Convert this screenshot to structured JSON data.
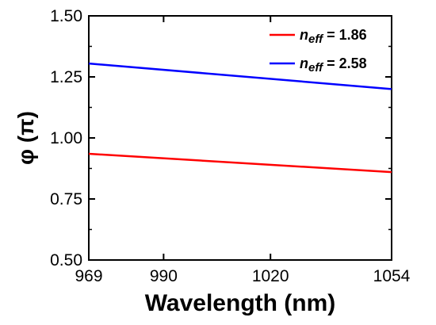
{
  "chart_data": {
    "type": "line",
    "xlabel": "Wavelength (nm)",
    "ylabel": "φ (π)",
    "xlim": [
      969,
      1054
    ],
    "ylim": [
      0.5,
      1.5
    ],
    "xticks": [
      969,
      990,
      1020,
      1054
    ],
    "xtick_labels": [
      "969",
      "990",
      "1020",
      "1054"
    ],
    "yticks": [
      0.5,
      0.75,
      1.0,
      1.25,
      1.5
    ],
    "ytick_labels": [
      "0.50",
      "0.75",
      "1.00",
      "1.25",
      "1.50"
    ],
    "grid": false,
    "legend_position": "top-right",
    "series": [
      {
        "name_prefix": "n",
        "name_subscript": "eff",
        "name_value": " = 1.86",
        "color": "#ff0000",
        "x": [
          969,
          1054
        ],
        "y": [
          0.935,
          0.86
        ]
      },
      {
        "name_prefix": "n",
        "name_subscript": "eff",
        "name_value": " = 2.58",
        "color": "#0000ff",
        "x": [
          969,
          1054
        ],
        "y": [
          1.305,
          1.2
        ]
      }
    ]
  }
}
